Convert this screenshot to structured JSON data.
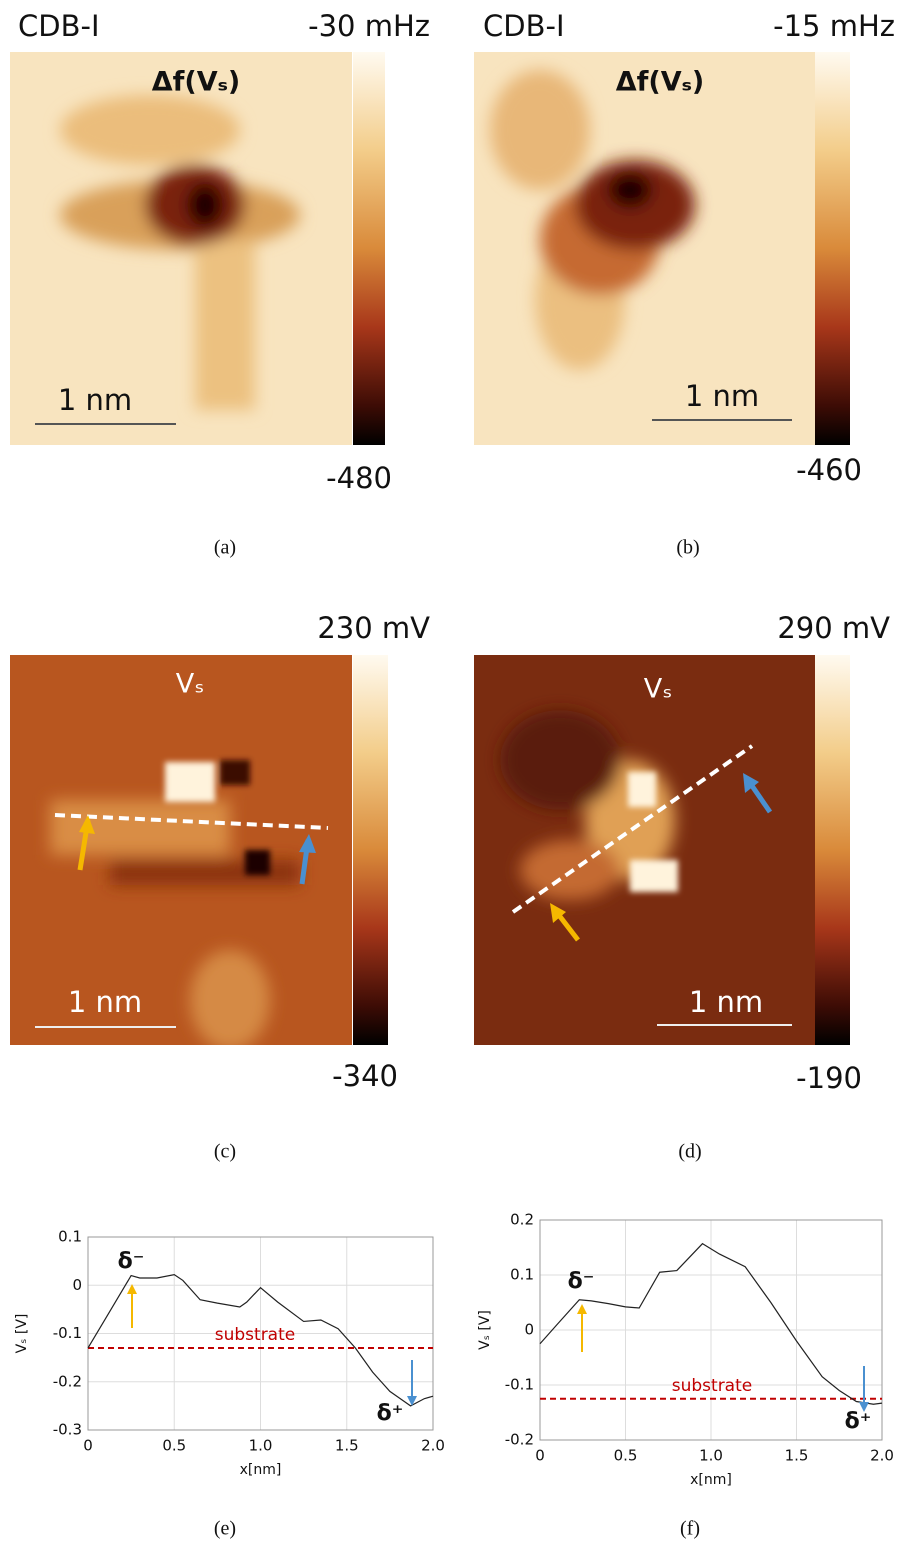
{
  "panels": [
    {
      "caption": "(a)",
      "title": "CDB-I",
      "image_label": "Δf(Vₛ)",
      "colorbar_max": "-30 mHz",
      "colorbar_min": "-480",
      "scale_bar": "1 nm"
    },
    {
      "caption": "(b)",
      "title": "CDB-I",
      "image_label": "Δf(Vₛ)",
      "colorbar_max": "-15 mHz",
      "colorbar_min": "-460",
      "scale_bar": "1 nm"
    },
    {
      "caption": "(c)",
      "image_label": "Vₛ",
      "colorbar_max": "230 mV",
      "colorbar_min": "-340",
      "scale_bar": "1 nm"
    },
    {
      "caption": "(d)",
      "image_label": "Vₛ",
      "colorbar_max": "290 mV",
      "colorbar_min": "-190",
      "scale_bar": "1 nm"
    }
  ],
  "chart_data": [
    {
      "type": "line",
      "caption": "(e)",
      "x_label": "x[nm]",
      "y_label": "Vₛ [V]",
      "x": [
        0,
        0.1,
        0.25,
        0.3,
        0.4,
        0.5,
        0.55,
        0.65,
        0.75,
        0.88,
        0.92,
        1.0,
        1.1,
        1.25,
        1.35,
        1.45,
        1.55,
        1.65,
        1.75,
        1.87,
        1.95,
        2.0
      ],
      "series": [
        {
          "color": "#222222",
          "values": [
            -0.13,
            -0.07,
            0.02,
            0.015,
            0.015,
            0.022,
            0.01,
            -0.03,
            -0.037,
            -0.045,
            -0.035,
            -0.005,
            -0.035,
            -0.075,
            -0.072,
            -0.09,
            -0.13,
            -0.18,
            -0.22,
            -0.25,
            -0.235,
            -0.23
          ]
        }
      ],
      "xlim": [
        0,
        2
      ],
      "xticks": [
        0,
        0.5,
        {
          "value": 1,
          "label": "1.0"
        },
        1.5,
        {
          "value": 2,
          "label": "2.0"
        }
      ],
      "ylim": [
        -0.3,
        0.1
      ],
      "yticks": [
        -0.3,
        -0.2,
        -0.1,
        0,
        0.1
      ],
      "grid": true,
      "reference_line": {
        "label": "substrate",
        "value": -0.13,
        "color": "#c00000"
      },
      "annotations": [
        "δ⁻",
        "δ⁺"
      ]
    },
    {
      "type": "line",
      "caption": "(f)",
      "x_label": "x[nm]",
      "y_label": "Vₛ [V]",
      "x": [
        0,
        0.1,
        0.23,
        0.3,
        0.4,
        0.5,
        0.58,
        0.7,
        0.8,
        0.95,
        1.05,
        1.2,
        1.35,
        1.5,
        1.65,
        1.75,
        1.85,
        1.95,
        2.0
      ],
      "series": [
        {
          "color": "#222222",
          "values": [
            -0.025,
            0.01,
            0.055,
            0.053,
            0.048,
            0.042,
            0.04,
            0.105,
            0.108,
            0.157,
            0.138,
            0.115,
            0.05,
            -0.02,
            -0.085,
            -0.11,
            -0.13,
            -0.135,
            -0.133
          ]
        }
      ],
      "xlim": [
        0,
        2
      ],
      "xticks": [
        0,
        0.5,
        {
          "value": 1,
          "label": "1.0"
        },
        1.5,
        {
          "value": 2,
          "label": "2.0"
        }
      ],
      "ylim": [
        -0.2,
        0.2
      ],
      "yticks": [
        -0.2,
        -0.1,
        0,
        0.1,
        0.2
      ],
      "grid": true,
      "reference_line": {
        "label": "substrate",
        "value": -0.125,
        "color": "#c00000"
      },
      "annotations": [
        "δ⁻",
        "δ⁺"
      ]
    }
  ]
}
